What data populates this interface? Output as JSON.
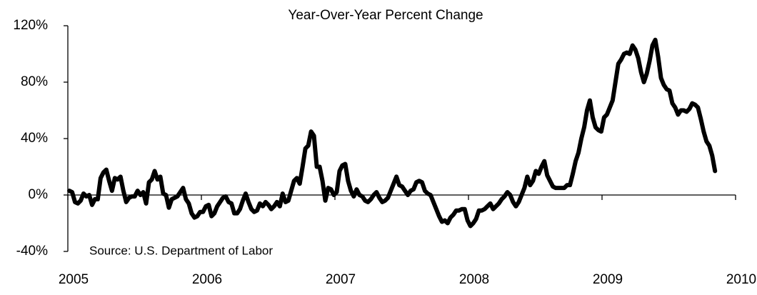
{
  "chart_data": {
    "type": "line",
    "title": "Year-Over-Year Percent Change",
    "annotation": "Source: U.S. Department of Labor",
    "color": "#000000",
    "xlim": [
      2005,
      2010
    ],
    "xticks": [
      2005,
      2006,
      2007,
      2008,
      2009,
      2010
    ],
    "ylim": [
      -40,
      120
    ],
    "yticks": [
      {
        "value": -40,
        "label": "-40%"
      },
      {
        "value": 0,
        "label": "0%"
      },
      {
        "value": 40,
        "label": "40%"
      },
      {
        "value": 80,
        "label": "80%"
      },
      {
        "value": 120,
        "label": "120%"
      }
    ],
    "x": [
      2005.011,
      2005.0323,
      2005.0536,
      2005.0749,
      2005.0962,
      2005.1175,
      2005.1388,
      2005.1601,
      2005.1814,
      2005.2027,
      2005.224,
      2005.2453,
      2005.2666,
      2005.2879,
      2005.3092,
      2005.3305,
      2005.3518,
      2005.3731,
      2005.3944,
      2005.4157,
      2005.437,
      2005.4583,
      2005.4796,
      2005.5009,
      2005.5222,
      2005.5435,
      2005.5648,
      2005.5861,
      2005.6074,
      2005.6287,
      2005.65,
      2005.6713,
      2005.6926,
      2005.7139,
      2005.7352,
      2005.7565,
      2005.7778,
      2005.7991,
      2005.8204,
      2005.8417,
      2005.863,
      2005.8843,
      2005.9056,
      2005.9269,
      2005.9482,
      2005.9695,
      2005.9908,
      2006.0121,
      2006.0334,
      2006.0547,
      2006.076,
      2006.0973,
      2006.1186,
      2006.1399,
      2006.1612,
      2006.1825,
      2006.2038,
      2006.2251,
      2006.2464,
      2006.2677,
      2006.289,
      2006.3103,
      2006.3316,
      2006.3529,
      2006.3742,
      2006.3955,
      2006.4168,
      2006.4381,
      2006.4594,
      2006.4807,
      2006.502,
      2006.5233,
      2006.5446,
      2006.5659,
      2006.5872,
      2006.6085,
      2006.6298,
      2006.6511,
      2006.6724,
      2006.6937,
      2006.715,
      2006.7363,
      2006.7576,
      2006.7789,
      2006.8002,
      2006.8215,
      2006.8428,
      2006.8641,
      2006.8854,
      2006.9067,
      2006.928,
      2006.9493,
      2006.9706,
      2006.9919,
      2007.0132,
      2007.0345,
      2007.0558,
      2007.0771,
      2007.0984,
      2007.1197,
      2007.141,
      2007.1623,
      2007.1836,
      2007.2049,
      2007.2262,
      2007.2475,
      2007.2688,
      2007.2901,
      2007.3114,
      2007.3327,
      2007.354,
      2007.3753,
      2007.3966,
      2007.4179,
      2007.4392,
      2007.4605,
      2007.4818,
      2007.5031,
      2007.5244,
      2007.5457,
      2007.567,
      2007.5883,
      2007.6096,
      2007.6309,
      2007.6522,
      2007.6735,
      2007.6948,
      2007.7161,
      2007.7374,
      2007.7587,
      2007.78,
      2007.8013,
      2007.8226,
      2007.8439,
      2007.8652,
      2007.8865,
      2007.9078,
      2007.9291,
      2007.9504,
      2007.9717,
      2007.993,
      2008.0143,
      2008.0356,
      2008.0569,
      2008.0782,
      2008.0995,
      2008.1208,
      2008.1421,
      2008.1634,
      2008.1847,
      2008.206,
      2008.2273,
      2008.2486,
      2008.2699,
      2008.2912,
      2008.3125,
      2008.3338,
      2008.3551,
      2008.3764,
      2008.3977,
      2008.419,
      2008.4403,
      2008.4616,
      2008.4829,
      2008.5042,
      2008.5255,
      2008.5468,
      2008.5681,
      2008.5894,
      2008.6107,
      2008.632,
      2008.6533,
      2008.6746,
      2008.6959,
      2008.7172,
      2008.7385,
      2008.7598,
      2008.7811,
      2008.8024,
      2008.8237,
      2008.845,
      2008.8663,
      2008.8876,
      2008.9089,
      2008.9302,
      2008.9515,
      2008.9728,
      2008.9941,
      2009.0154,
      2009.0367,
      2009.058,
      2009.0793,
      2009.1006,
      2009.1219,
      2009.1432,
      2009.1645,
      2009.1858,
      2009.2071,
      2009.2284,
      2009.2497,
      2009.271,
      2009.2923,
      2009.3136,
      2009.3349,
      2009.3562,
      2009.3775,
      2009.3988,
      2009.4201,
      2009.4414,
      2009.4627,
      2009.484,
      2009.5053,
      2009.5266,
      2009.5479,
      2009.5692,
      2009.5905,
      2009.6118,
      2009.6331,
      2009.6544,
      2009.6757,
      2009.697,
      2009.7183,
      2009.7396,
      2009.7609,
      2009.7822,
      2009.8035,
      2009.8248,
      2009.8461
    ],
    "values": [
      3,
      2,
      -5,
      -6,
      -4,
      1,
      -1,
      0,
      -7,
      -3,
      -3,
      12,
      16,
      18,
      10,
      3,
      12,
      11,
      13,
      3,
      -5,
      -2,
      -1,
      -1,
      3,
      0,
      2,
      -6,
      9,
      11,
      17,
      11,
      13,
      1,
      0,
      -9,
      -3,
      -2,
      -1,
      2,
      5,
      -3,
      -6,
      -13,
      -16,
      -15,
      -12,
      -12,
      -8,
      -7,
      -15,
      -13,
      -8,
      -5,
      -2,
      -1,
      -5,
      -6,
      -13,
      -13,
      -10,
      -4,
      1,
      -5,
      -10,
      -12,
      -11,
      -6,
      -8,
      -5,
      -7,
      -10,
      -8,
      -5,
      -8,
      1,
      -5,
      -4,
      3,
      10,
      12,
      8,
      20,
      33,
      35,
      45,
      42,
      20,
      20,
      10,
      -4,
      5,
      4,
      0,
      2,
      17,
      21,
      22,
      10,
      3,
      -1,
      4,
      0,
      -1,
      -4,
      -5,
      -3,
      0,
      2,
      -2,
      -5,
      -4,
      -2,
      3,
      8,
      13,
      7,
      6,
      3,
      0,
      3,
      4,
      9,
      10,
      9,
      3,
      1,
      0,
      -5,
      -10,
      -15,
      -19,
      -18,
      -20,
      -16,
      -14,
      -11,
      -11,
      -10,
      -10,
      -18,
      -22,
      -20,
      -17,
      -11,
      -11,
      -10,
      -8,
      -6,
      -10,
      -8,
      -6,
      -3,
      -1,
      2,
      0,
      -5,
      -8,
      -5,
      0,
      5,
      13,
      7,
      10,
      17,
      15,
      20,
      24,
      14,
      10,
      6,
      5,
      5,
      5,
      5,
      7,
      7,
      15,
      24,
      30,
      40,
      48,
      60,
      67,
      55,
      48,
      46,
      45,
      55,
      57,
      62,
      67,
      80,
      93,
      96,
      100,
      101,
      100,
      106,
      103,
      97,
      87,
      80,
      86,
      95,
      106,
      110,
      98,
      83,
      78,
      75,
      74,
      65,
      62,
      57,
      60,
      60,
      59,
      61,
      65,
      64,
      62,
      54,
      45,
      38,
      35,
      28,
      17
    ]
  }
}
